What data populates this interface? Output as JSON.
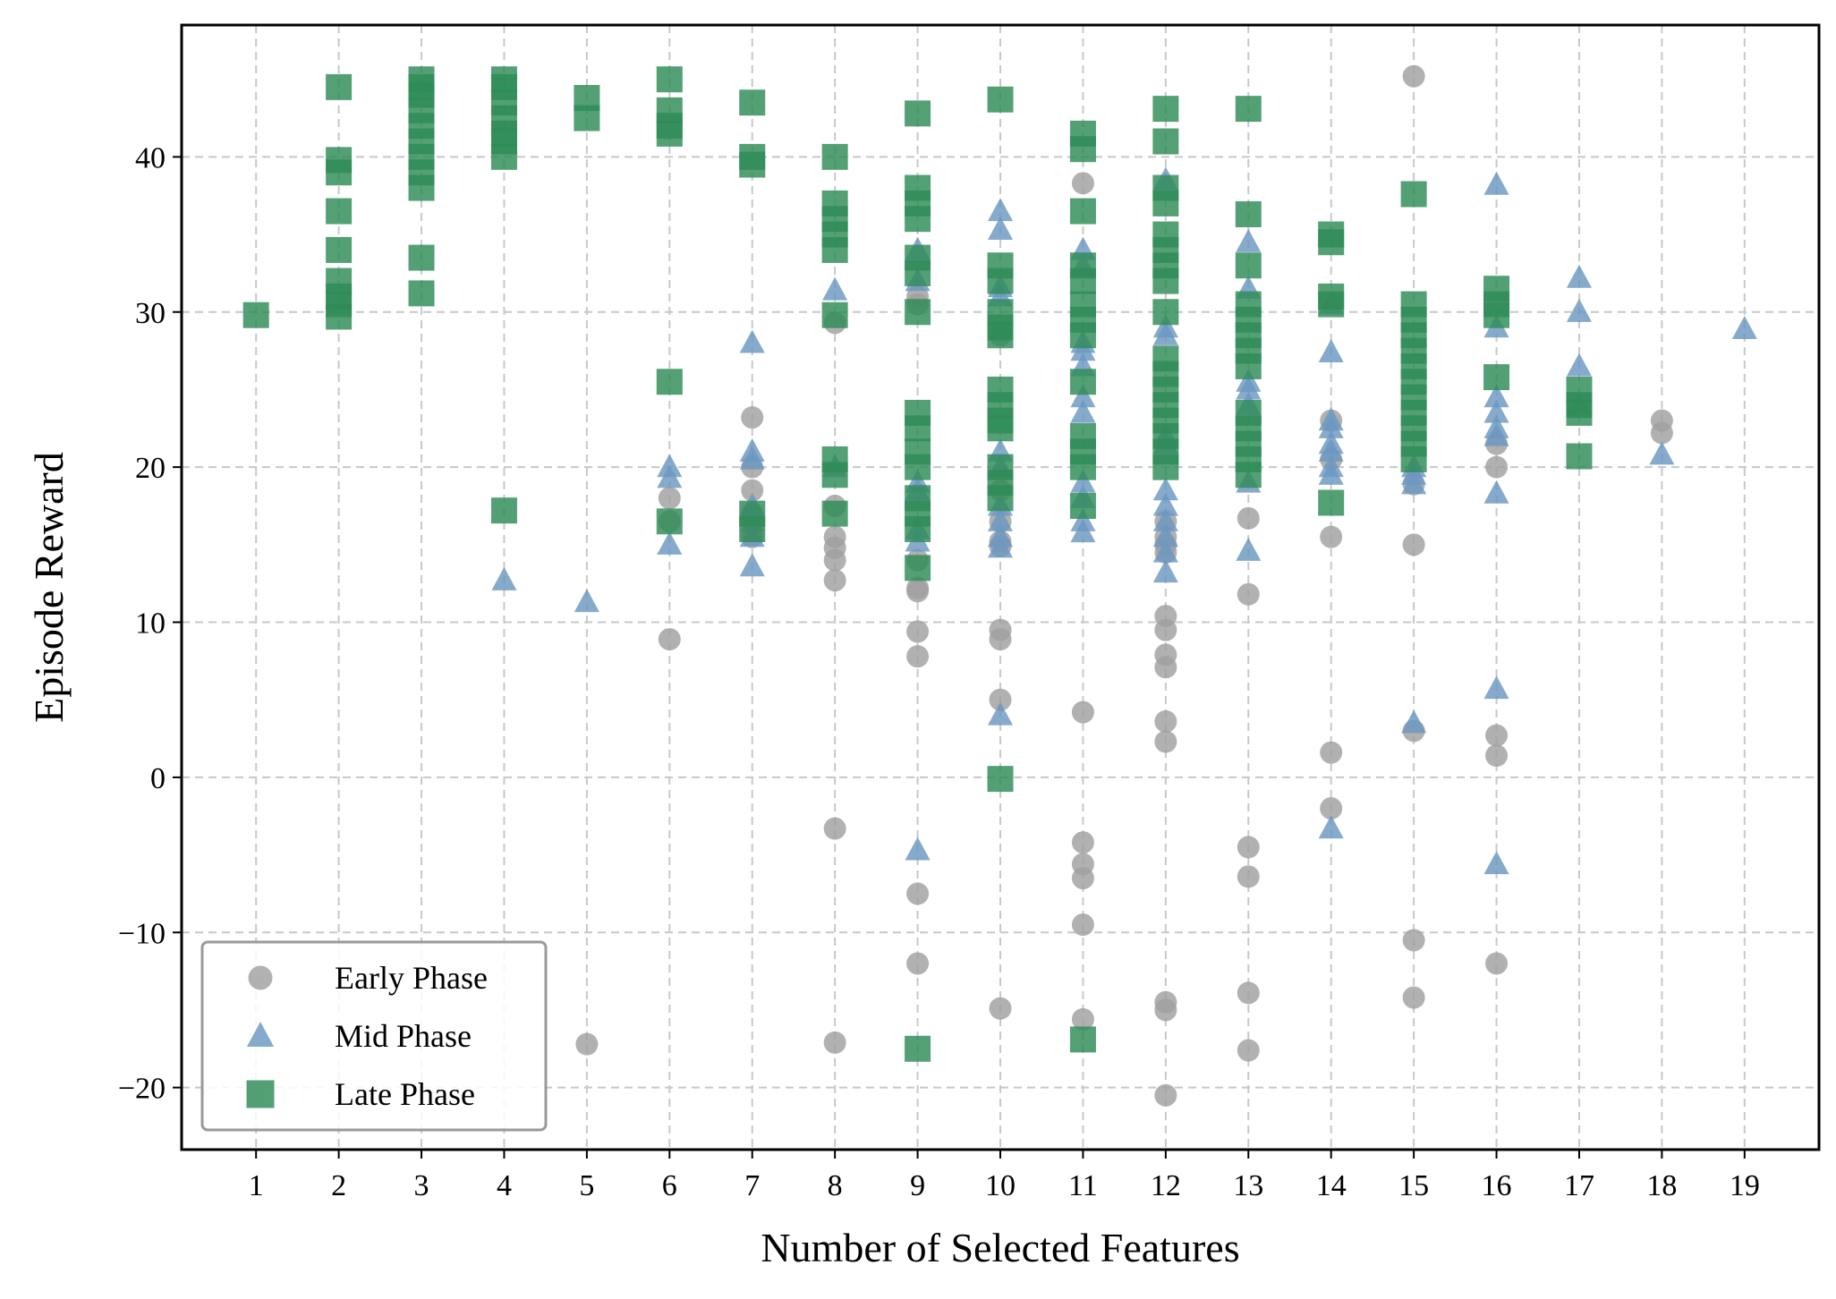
{
  "chart_data": {
    "type": "scatter",
    "title": "",
    "xlabel": "Number of Selected Features",
    "ylabel": "Episode Reward",
    "xlim": [
      0.1,
      19.9
    ],
    "ylim": [
      -24,
      48.5
    ],
    "xticks": [
      1,
      2,
      3,
      4,
      5,
      6,
      7,
      8,
      9,
      10,
      11,
      12,
      13,
      14,
      15,
      16,
      17,
      18,
      19
    ],
    "yticks": [
      -20,
      -10,
      0,
      10,
      20,
      30,
      40
    ],
    "ytick_labels": [
      "−20",
      "−10",
      "0",
      "10",
      "20",
      "30",
      "40"
    ],
    "grid": true,
    "legend_position": "lower-left",
    "series": [
      {
        "name": "Early Phase",
        "marker": "circle",
        "color": "#a0a0a0",
        "points": [
          [
            5,
            -17.2
          ],
          [
            6,
            18
          ],
          [
            6,
            16.5
          ],
          [
            6,
            8.9
          ],
          [
            7,
            23.2
          ],
          [
            7,
            20
          ],
          [
            7,
            18.5
          ],
          [
            7,
            17
          ],
          [
            7,
            15.5
          ],
          [
            8,
            29.3
          ],
          [
            8,
            17.5
          ],
          [
            8,
            15.5
          ],
          [
            8,
            14.8
          ],
          [
            8,
            14
          ],
          [
            8,
            12.7
          ],
          [
            8,
            -3.3
          ],
          [
            8,
            -17.1
          ],
          [
            9,
            31
          ],
          [
            9,
            30.5
          ],
          [
            9,
            14
          ],
          [
            9,
            12.2
          ],
          [
            9,
            12
          ],
          [
            9,
            9.4
          ],
          [
            9,
            7.8
          ],
          [
            9,
            -7.5
          ],
          [
            9,
            -12
          ],
          [
            10,
            28.5
          ],
          [
            10,
            18.5
          ],
          [
            10,
            16.5
          ],
          [
            10,
            15.2
          ],
          [
            10,
            14.9
          ],
          [
            10,
            9.5
          ],
          [
            10,
            8.9
          ],
          [
            10,
            5
          ],
          [
            10,
            -14.9
          ],
          [
            11,
            38.3
          ],
          [
            11,
            4.2
          ],
          [
            11,
            -4.2
          ],
          [
            11,
            -5.6
          ],
          [
            11,
            -6.5
          ],
          [
            11,
            -9.5
          ],
          [
            11,
            -15.6
          ],
          [
            12,
            16.5
          ],
          [
            12,
            15.5
          ],
          [
            12,
            15
          ],
          [
            12,
            14.5
          ],
          [
            12,
            10.4
          ],
          [
            12,
            9.5
          ],
          [
            12,
            7.9
          ],
          [
            12,
            7.1
          ],
          [
            12,
            3.6
          ],
          [
            12,
            2.3
          ],
          [
            12,
            -14.5
          ],
          [
            12,
            -15
          ],
          [
            12,
            -20.5
          ],
          [
            13,
            16.7
          ],
          [
            13,
            11.8
          ],
          [
            13,
            -4.5
          ],
          [
            13,
            -6.4
          ],
          [
            13,
            -13.9
          ],
          [
            13,
            -17.6
          ],
          [
            14,
            23
          ],
          [
            14,
            20.5
          ],
          [
            14,
            15.5
          ],
          [
            14,
            1.6
          ],
          [
            14,
            -2
          ],
          [
            15,
            45.2
          ],
          [
            15,
            18.9
          ],
          [
            15,
            15
          ],
          [
            15,
            3
          ],
          [
            15,
            -10.5
          ],
          [
            15,
            -14.2
          ],
          [
            16,
            21.5
          ],
          [
            16,
            20
          ],
          [
            16,
            2.7
          ],
          [
            16,
            1.4
          ],
          [
            16,
            -12
          ],
          [
            18,
            23
          ],
          [
            18,
            22.2
          ]
        ]
      },
      {
        "name": "Mid Phase",
        "marker": "triangle",
        "color": "#6b97c1",
        "points": [
          [
            4,
            12.7
          ],
          [
            5,
            11.3
          ],
          [
            6,
            20
          ],
          [
            6,
            19.3
          ],
          [
            6,
            15
          ],
          [
            7,
            28
          ],
          [
            7,
            21
          ],
          [
            7,
            20.5
          ],
          [
            7,
            17.5
          ],
          [
            7,
            16.5
          ],
          [
            7,
            15.5
          ],
          [
            7,
            13.6
          ],
          [
            8,
            31.4
          ],
          [
            8,
            20
          ],
          [
            9,
            34
          ],
          [
            9,
            32
          ],
          [
            9,
            19
          ],
          [
            9,
            18.5
          ],
          [
            9,
            16
          ],
          [
            9,
            15.2
          ],
          [
            9,
            -4.7
          ],
          [
            10,
            36.5
          ],
          [
            10,
            35.3
          ],
          [
            10,
            31.6
          ],
          [
            10,
            31
          ],
          [
            10,
            21
          ],
          [
            10,
            20
          ],
          [
            10,
            17.5
          ],
          [
            10,
            16.5
          ],
          [
            10,
            15.5
          ],
          [
            10,
            14.8
          ],
          [
            10,
            4
          ],
          [
            11,
            34
          ],
          [
            11,
            33
          ],
          [
            11,
            28
          ],
          [
            11,
            27.5
          ],
          [
            11,
            26.5
          ],
          [
            11,
            24.5
          ],
          [
            11,
            23.5
          ],
          [
            11,
            19
          ],
          [
            11,
            18
          ],
          [
            11,
            16.5
          ],
          [
            11,
            15.8
          ],
          [
            12,
            38.5
          ],
          [
            12,
            29
          ],
          [
            12,
            28.5
          ],
          [
            12,
            22
          ],
          [
            12,
            21.5
          ],
          [
            12,
            18.5
          ],
          [
            12,
            17.5
          ],
          [
            12,
            16.5
          ],
          [
            12,
            15.5
          ],
          [
            12,
            14.5
          ],
          [
            12,
            13.2
          ],
          [
            13,
            34.5
          ],
          [
            13,
            31.5
          ],
          [
            13,
            25.5
          ],
          [
            13,
            25
          ],
          [
            13,
            24
          ],
          [
            13,
            19
          ],
          [
            13,
            14.6
          ],
          [
            14,
            30.5
          ],
          [
            14,
            27.4
          ],
          [
            14,
            23
          ],
          [
            14,
            22.5
          ],
          [
            14,
            21.5
          ],
          [
            14,
            21
          ],
          [
            14,
            20
          ],
          [
            14,
            19.5
          ],
          [
            14,
            -3.3
          ],
          [
            15,
            20
          ],
          [
            15,
            19.5
          ],
          [
            15,
            18.9
          ],
          [
            15,
            3.5
          ],
          [
            16,
            38.2
          ],
          [
            16,
            29
          ],
          [
            16,
            24.5
          ],
          [
            16,
            23.5
          ],
          [
            16,
            22.5
          ],
          [
            16,
            22
          ],
          [
            16,
            18.3
          ],
          [
            16,
            5.7
          ],
          [
            16,
            -5.6
          ],
          [
            17,
            32.2
          ],
          [
            17,
            30
          ],
          [
            17,
            26.5
          ],
          [
            17,
            24
          ],
          [
            18,
            20.8
          ],
          [
            19,
            28.9
          ]
        ]
      },
      {
        "name": "Late Phase",
        "marker": "square",
        "color": "#2e8b57",
        "points": [
          [
            1,
            29.8
          ],
          [
            2,
            44.5
          ],
          [
            2,
            39.8
          ],
          [
            2,
            39
          ],
          [
            2,
            36.5
          ],
          [
            2,
            34
          ],
          [
            2,
            32
          ],
          [
            2,
            31
          ],
          [
            2,
            30.5
          ],
          [
            2,
            29.7
          ],
          [
            3,
            45
          ],
          [
            3,
            44.5
          ],
          [
            3,
            44
          ],
          [
            3,
            43
          ],
          [
            3,
            42
          ],
          [
            3,
            41
          ],
          [
            3,
            40
          ],
          [
            3,
            39
          ],
          [
            3,
            38
          ],
          [
            3,
            33.5
          ],
          [
            3,
            31.2
          ],
          [
            4,
            45
          ],
          [
            4,
            44.5
          ],
          [
            4,
            43.5
          ],
          [
            4,
            42.5
          ],
          [
            4,
            41.5
          ],
          [
            4,
            41
          ],
          [
            4,
            40
          ],
          [
            4,
            17.2
          ],
          [
            5,
            43.8
          ],
          [
            5,
            42.5
          ],
          [
            6,
            45
          ],
          [
            6,
            43
          ],
          [
            6,
            42
          ],
          [
            6,
            41.5
          ],
          [
            6,
            25.5
          ],
          [
            6,
            16.5
          ],
          [
            7,
            43.5
          ],
          [
            7,
            40
          ],
          [
            7,
            39.5
          ],
          [
            7,
            17
          ],
          [
            7,
            16
          ],
          [
            8,
            40
          ],
          [
            8,
            37
          ],
          [
            8,
            36
          ],
          [
            8,
            35
          ],
          [
            8,
            34
          ],
          [
            8,
            29.8
          ],
          [
            8,
            20.5
          ],
          [
            8,
            19.5
          ],
          [
            8,
            17
          ],
          [
            9,
            42.8
          ],
          [
            9,
            38
          ],
          [
            9,
            37
          ],
          [
            9,
            36
          ],
          [
            9,
            33.5
          ],
          [
            9,
            32.5
          ],
          [
            9,
            30
          ],
          [
            9,
            23.5
          ],
          [
            9,
            22.5
          ],
          [
            9,
            21
          ],
          [
            9,
            20
          ],
          [
            9,
            18
          ],
          [
            9,
            17
          ],
          [
            9,
            16
          ],
          [
            9,
            13.5
          ],
          [
            9,
            -17.5
          ],
          [
            10,
            43.7
          ],
          [
            10,
            33
          ],
          [
            10,
            32
          ],
          [
            10,
            30
          ],
          [
            10,
            29
          ],
          [
            10,
            28.5
          ],
          [
            10,
            25
          ],
          [
            10,
            24
          ],
          [
            10,
            23
          ],
          [
            10,
            22.5
          ],
          [
            10,
            20
          ],
          [
            10,
            19
          ],
          [
            10,
            18
          ],
          [
            10,
            -0.1
          ],
          [
            11,
            41.5
          ],
          [
            11,
            40.5
          ],
          [
            11,
            36.5
          ],
          [
            11,
            33
          ],
          [
            11,
            32
          ],
          [
            11,
            30.5
          ],
          [
            11,
            29.5
          ],
          [
            11,
            28.5
          ],
          [
            11,
            25.5
          ],
          [
            11,
            22
          ],
          [
            11,
            21
          ],
          [
            11,
            20
          ],
          [
            11,
            17.5
          ],
          [
            11,
            -16.9
          ],
          [
            12,
            43.1
          ],
          [
            12,
            41
          ],
          [
            12,
            38
          ],
          [
            12,
            37
          ],
          [
            12,
            35
          ],
          [
            12,
            34
          ],
          [
            12,
            33
          ],
          [
            12,
            32
          ],
          [
            12,
            30
          ],
          [
            12,
            27
          ],
          [
            12,
            26
          ],
          [
            12,
            25
          ],
          [
            12,
            24
          ],
          [
            12,
            23
          ],
          [
            12,
            22
          ],
          [
            12,
            21
          ],
          [
            12,
            20
          ],
          [
            13,
            43.1
          ],
          [
            13,
            36.3
          ],
          [
            13,
            33
          ],
          [
            13,
            30.5
          ],
          [
            13,
            29.5
          ],
          [
            13,
            28.5
          ],
          [
            13,
            27.5
          ],
          [
            13,
            26.5
          ],
          [
            13,
            23.5
          ],
          [
            13,
            22.5
          ],
          [
            13,
            21.5
          ],
          [
            13,
            20.5
          ],
          [
            13,
            19.5
          ],
          [
            14,
            35
          ],
          [
            14,
            34.5
          ],
          [
            14,
            31
          ],
          [
            14,
            30.5
          ],
          [
            14,
            17.7
          ],
          [
            15,
            37.6
          ],
          [
            15,
            30.5
          ],
          [
            15,
            29.5
          ],
          [
            15,
            28.5
          ],
          [
            15,
            27.5
          ],
          [
            15,
            26.5
          ],
          [
            15,
            25.5
          ],
          [
            15,
            24.5
          ],
          [
            15,
            23.5
          ],
          [
            15,
            22.5
          ],
          [
            15,
            21.5
          ],
          [
            15,
            20.5
          ],
          [
            16,
            31.5
          ],
          [
            16,
            30.5
          ],
          [
            16,
            29.8
          ],
          [
            16,
            25.8
          ],
          [
            17,
            25
          ],
          [
            17,
            24
          ],
          [
            17,
            23.5
          ],
          [
            17,
            20.7
          ]
        ]
      }
    ]
  }
}
